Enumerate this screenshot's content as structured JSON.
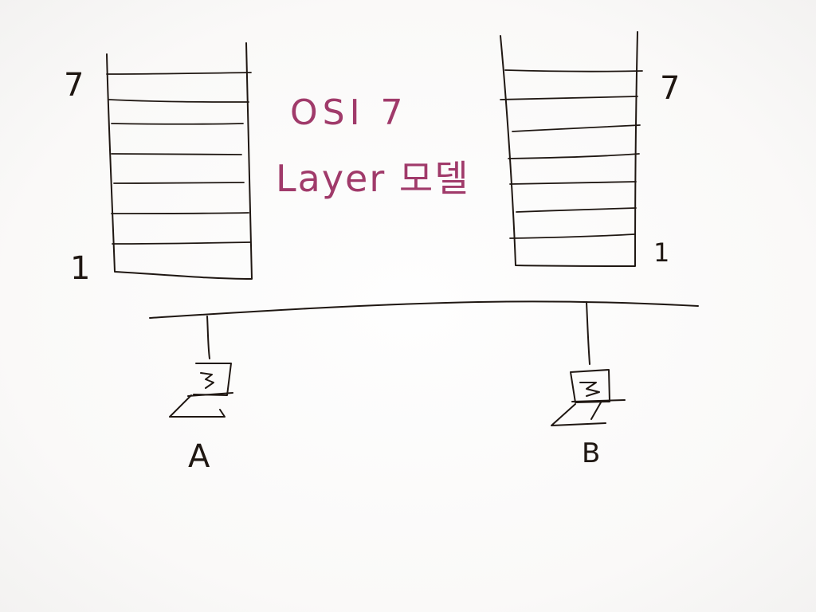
{
  "title": {
    "line1": "OSI 7",
    "line2": "Layer 모델"
  },
  "stacks": [
    {
      "top_label": "7",
      "bottom_label": "1",
      "layer_count": 7
    },
    {
      "top_label": "7",
      "bottom_label": "1",
      "layer_count": 7
    }
  ],
  "hosts": [
    {
      "label": "A"
    },
    {
      "label": "B"
    }
  ],
  "colors": {
    "ink": "#1f1712",
    "title": "#a03a6a",
    "board": "#fdfcfc"
  }
}
